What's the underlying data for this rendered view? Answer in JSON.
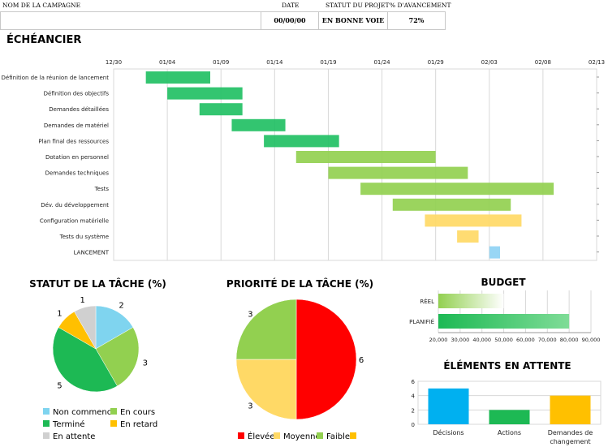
{
  "header": {
    "campaign_label": "NOM DE LA CAMPAGNE",
    "campaign_value": "",
    "date_label": "DATE",
    "date_value": "00/00/00",
    "status_label": "STATUT DU PROJET",
    "status_value": "EN BONNE VOIE",
    "progress_label": "% D'AVANCEMENT",
    "progress_value": "72%"
  },
  "schedule_title": "ÉCHÉANCIER",
  "chart_data": [
    {
      "type": "bar",
      "subtype": "gantt",
      "title": "",
      "x_ticks": [
        "12/30",
        "01/04",
        "01/09",
        "01/14",
        "01/19",
        "01/24",
        "01/29",
        "02/03",
        "02/08",
        "02/13"
      ],
      "x_range_days": [
        0,
        45
      ],
      "grid": true,
      "tasks": [
        {
          "name": "Définition de la réunion de lancement",
          "start": 3,
          "duration": 6,
          "color": "#22c064"
        },
        {
          "name": "Définition des objectifs",
          "start": 5,
          "duration": 7,
          "color": "#22c064"
        },
        {
          "name": "Demandes détaillées",
          "start": 8,
          "duration": 4,
          "color": "#22c064"
        },
        {
          "name": "Demandes de matériel",
          "start": 11,
          "duration": 5,
          "color": "#22c064"
        },
        {
          "name": "Plan final des ressources",
          "start": 14,
          "duration": 7,
          "color": "#22c064"
        },
        {
          "name": "Dotation en personnel",
          "start": 17,
          "duration": 13,
          "color": "#92d050"
        },
        {
          "name": "Demandes techniques",
          "start": 20,
          "duration": 13,
          "color": "#92d050"
        },
        {
          "name": "Tests",
          "start": 23,
          "duration": 18,
          "color": "#92d050"
        },
        {
          "name": "Dév. du développement",
          "start": 26,
          "duration": 11,
          "color": "#92d050"
        },
        {
          "name": "Configuration matérielle",
          "start": 29,
          "duration": 9,
          "color": "#ffd966"
        },
        {
          "name": "Tests du système",
          "start": 32,
          "duration": 2,
          "color": "#ffd966"
        },
        {
          "name": "LANCEMENT",
          "start": 35,
          "duration": 1,
          "color": "#8fd3f4"
        }
      ]
    },
    {
      "type": "pie",
      "title": "STATUT DE LA TÂCHE (%)",
      "slices": [
        {
          "label": "Non commencé",
          "value": 2,
          "color": "#7fd4ef"
        },
        {
          "label": "En cours",
          "value": 3,
          "color": "#92d050"
        },
        {
          "label": "Terminé",
          "value": 5,
          "color": "#1db954"
        },
        {
          "label": "En retard",
          "value": 1,
          "color": "#ffc000"
        },
        {
          "label": "En attente",
          "value": 1,
          "color": "#d0d0d0"
        }
      ],
      "legend": "bottom"
    },
    {
      "type": "pie",
      "title": "PRIORITÉ DE LA TÂCHE (%)",
      "slices": [
        {
          "label": "Élevée",
          "value": 6,
          "color": "#ff0000"
        },
        {
          "label": "Moyenne",
          "value": 3,
          "color": "#ffd966"
        },
        {
          "label": "Faible",
          "value": 3,
          "color": "#92d050"
        },
        {
          "label": "",
          "value": 0,
          "color": "#ffc000"
        }
      ],
      "legend": "bottom"
    },
    {
      "type": "bar",
      "orientation": "horizontal",
      "title": "BUDGET",
      "categories": [
        "RÉEL",
        "PLANIFIÉ"
      ],
      "values": [
        50000,
        80000
      ],
      "xlim": [
        20000,
        90000
      ],
      "x_ticks": [
        "20,000",
        "30,000",
        "40,000",
        "50,000",
        "60,000",
        "70,000",
        "80,000",
        "90,000"
      ],
      "grid": true
    },
    {
      "type": "bar",
      "title": "ÉLÉMENTS EN ATTENTE",
      "categories": [
        "Décisions",
        "Actions",
        "Demandes de changement"
      ],
      "values": [
        5,
        2,
        4
      ],
      "colors": [
        "#00b0f0",
        "#1db954",
        "#ffc000"
      ],
      "ylim": [
        0,
        6
      ],
      "y_ticks": [
        "0",
        "2",
        "4",
        "6"
      ],
      "grid": true
    }
  ]
}
